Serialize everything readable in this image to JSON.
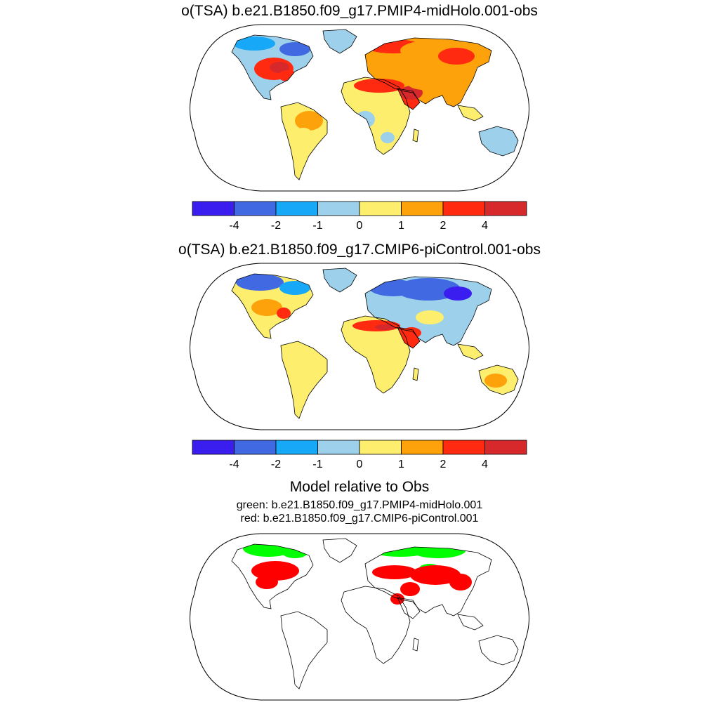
{
  "panels": [
    {
      "title": "o(TSA) b.e21.B1850.f09_g17.PMIP4-midHolo.001-obs",
      "map": "map-anomaly-1"
    },
    {
      "title": "o(TSA) b.e21.B1850.f09_g17.CMIP6-piControl.001-obs",
      "map": "map-anomaly-2"
    }
  ],
  "colorbar": {
    "colors": [
      "#3a1ef0",
      "#4169e1",
      "#17a9f7",
      "#9dd0ea",
      "#fdee6e",
      "#fda20b",
      "#ff2a0f",
      "#d7282c"
    ],
    "labels": [
      "-4",
      "-2",
      "-1",
      "0",
      "1",
      "2",
      "4"
    ]
  },
  "comparison": {
    "title": "Model relative to Obs",
    "green": "green: b.e21.B1850.f09_g17.PMIP4-midHolo.001",
    "red": "red: b.e21.B1850.f09_g17.CMIP6-piControl.001",
    "colors": {
      "green": "#00ff00",
      "red": "#ff0000"
    }
  }
}
